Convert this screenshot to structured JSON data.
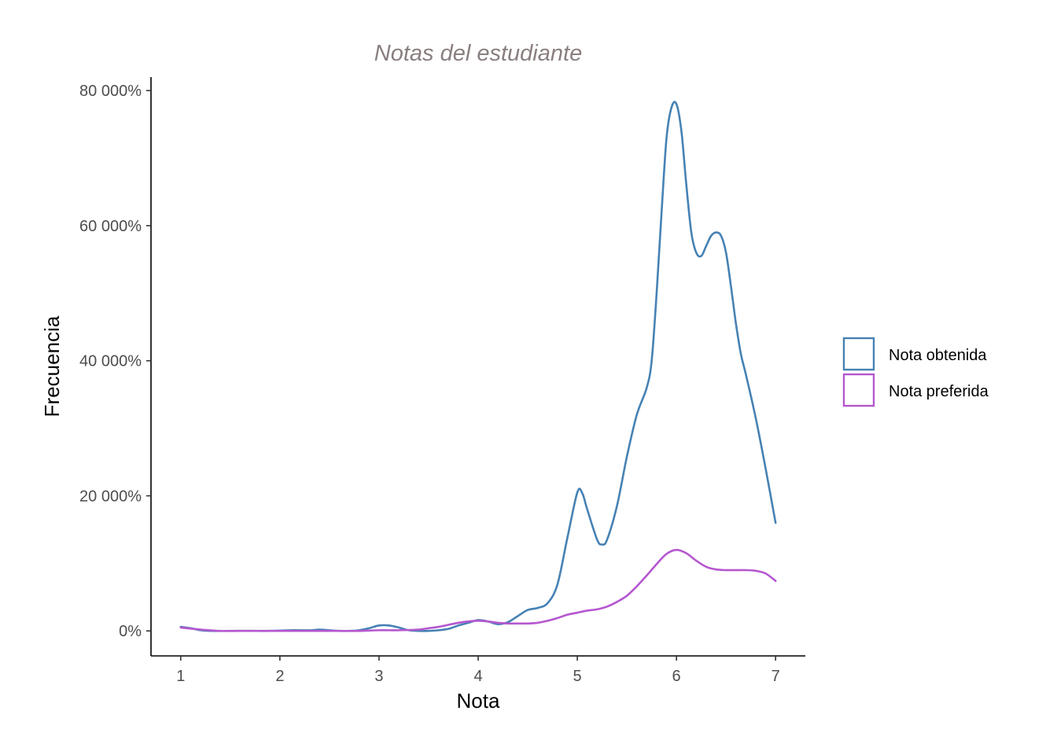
{
  "chart_data": {
    "type": "line",
    "title": "Notas del estudiante",
    "xlabel": "Nota",
    "ylabel": "Frecuencia",
    "xlim": [
      0.7,
      7.3
    ],
    "ylim": [
      -3.7,
      82
    ],
    "x_ticks": [
      1,
      2,
      3,
      4,
      5,
      6,
      7
    ],
    "x_tick_labels": [
      "1",
      "2",
      "3",
      "4",
      "5",
      "6",
      "7"
    ],
    "y_ticks": [
      0,
      20,
      40,
      60,
      80
    ],
    "y_tick_labels": [
      "0%",
      "20 000%",
      "40 000%",
      "60 000%",
      "80 000%"
    ],
    "grid": false,
    "legend_position": "right",
    "series": [
      {
        "name": "Nota obtenida",
        "color": "#4682b4",
        "x": [
          1.0,
          1.1,
          1.2,
          1.3,
          1.5,
          1.7,
          1.9,
          2.1,
          2.3,
          2.4,
          2.5,
          2.6,
          2.7,
          2.8,
          2.9,
          3.0,
          3.1,
          3.2,
          3.3,
          3.4,
          3.5,
          3.6,
          3.7,
          3.8,
          3.9,
          4.0,
          4.1,
          4.2,
          4.3,
          4.4,
          4.5,
          4.6,
          4.7,
          4.8,
          4.9,
          5.0,
          5.05,
          5.1,
          5.2,
          5.25,
          5.3,
          5.4,
          5.5,
          5.6,
          5.7,
          5.75,
          5.8,
          5.85,
          5.9,
          5.95,
          6.0,
          6.05,
          6.1,
          6.15,
          6.2,
          6.25,
          6.3,
          6.35,
          6.4,
          6.45,
          6.5,
          6.55,
          6.6,
          6.65,
          6.7,
          6.8,
          6.9,
          7.0
        ],
        "values": [
          0.6,
          0.4,
          0.1,
          0.0,
          0.0,
          0.0,
          0.0,
          0.1,
          0.1,
          0.2,
          0.1,
          0.0,
          0.0,
          0.1,
          0.4,
          0.8,
          0.8,
          0.5,
          0.1,
          0.0,
          0.0,
          0.1,
          0.3,
          0.8,
          1.2,
          1.6,
          1.4,
          1.0,
          1.3,
          2.2,
          3.1,
          3.4,
          4.1,
          6.9,
          13.8,
          20.5,
          20.4,
          18.0,
          13.5,
          12.8,
          13.5,
          18.5,
          25.8,
          32.0,
          36.0,
          40.0,
          50.0,
          62.0,
          73.0,
          77.5,
          78.0,
          74.0,
          66.0,
          59.0,
          56.0,
          55.5,
          57.0,
          58.5,
          59.0,
          58.5,
          56.0,
          51.0,
          45.5,
          41.0,
          38.0,
          31.5,
          24.0,
          16.0
        ]
      },
      {
        "name": "Nota preferida",
        "color": "#b557cf",
        "x": [
          1.0,
          1.2,
          1.4,
          1.6,
          1.8,
          2.0,
          2.2,
          2.4,
          2.6,
          2.8,
          3.0,
          3.2,
          3.4,
          3.5,
          3.6,
          3.7,
          3.8,
          3.9,
          4.0,
          4.1,
          4.2,
          4.3,
          4.4,
          4.5,
          4.6,
          4.7,
          4.8,
          4.9,
          5.0,
          5.1,
          5.2,
          5.3,
          5.4,
          5.5,
          5.6,
          5.7,
          5.8,
          5.9,
          6.0,
          6.1,
          6.2,
          6.3,
          6.4,
          6.5,
          6.6,
          6.7,
          6.8,
          6.9,
          7.0
        ],
        "values": [
          0.5,
          0.2,
          0.0,
          0.0,
          0.0,
          0.0,
          0.0,
          0.0,
          0.0,
          0.0,
          0.1,
          0.1,
          0.2,
          0.4,
          0.6,
          0.9,
          1.2,
          1.4,
          1.5,
          1.4,
          1.2,
          1.1,
          1.1,
          1.1,
          1.2,
          1.5,
          1.9,
          2.4,
          2.7,
          3.0,
          3.2,
          3.6,
          4.3,
          5.2,
          6.6,
          8.2,
          9.9,
          11.4,
          12.0,
          11.5,
          10.4,
          9.5,
          9.1,
          9.0,
          9.0,
          9.0,
          8.9,
          8.5,
          7.4
        ]
      }
    ]
  }
}
